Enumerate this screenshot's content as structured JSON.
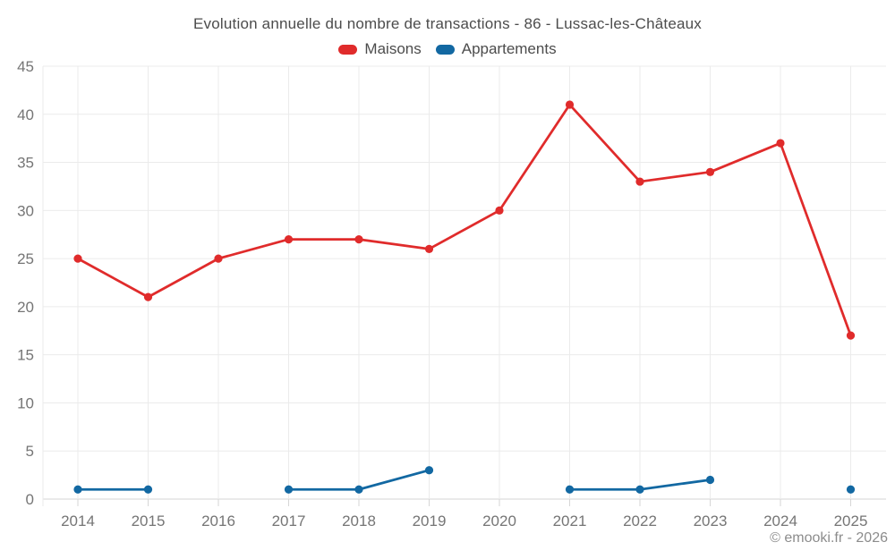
{
  "title": "Evolution annuelle du nombre de transactions - 86 - Lussac-les-Châteaux",
  "footer": "© emooki.fr - 2026",
  "colors": {
    "maisons": "#e02b2b",
    "appartements": "#1268a2",
    "grid": "#ebebeb",
    "axis_line": "#d6d6d6",
    "tick": "#d6d6d6",
    "axis_label": "#757575",
    "title_text": "#4c4c4c",
    "footer_text": "#8c8c8c",
    "background": "#ffffff"
  },
  "legend": {
    "items": [
      {
        "label": "Maisons",
        "color": "#e02b2b"
      },
      {
        "label": "Appartements",
        "color": "#1268a2"
      }
    ]
  },
  "chart_data": {
    "type": "line",
    "title": "Evolution annuelle du nombre de transactions - 86 - Lussac-les-Châteaux",
    "categories": [
      "2014",
      "2015",
      "2016",
      "2017",
      "2018",
      "2019",
      "2020",
      "2021",
      "2022",
      "2023",
      "2024",
      "2025"
    ],
    "series": [
      {
        "name": "Maisons",
        "color": "#e02b2b",
        "values": [
          25,
          21,
          25,
          27,
          27,
          26,
          30,
          41,
          33,
          34,
          37,
          17
        ]
      },
      {
        "name": "Appartements",
        "color": "#1268a2",
        "values": [
          1,
          1,
          null,
          1,
          1,
          3,
          null,
          1,
          1,
          2,
          null,
          1
        ]
      }
    ],
    "xlabel": "",
    "ylabel": "",
    "ylim": [
      0,
      45
    ],
    "ytick_step": 5,
    "grid": true,
    "legend_position": "top"
  }
}
